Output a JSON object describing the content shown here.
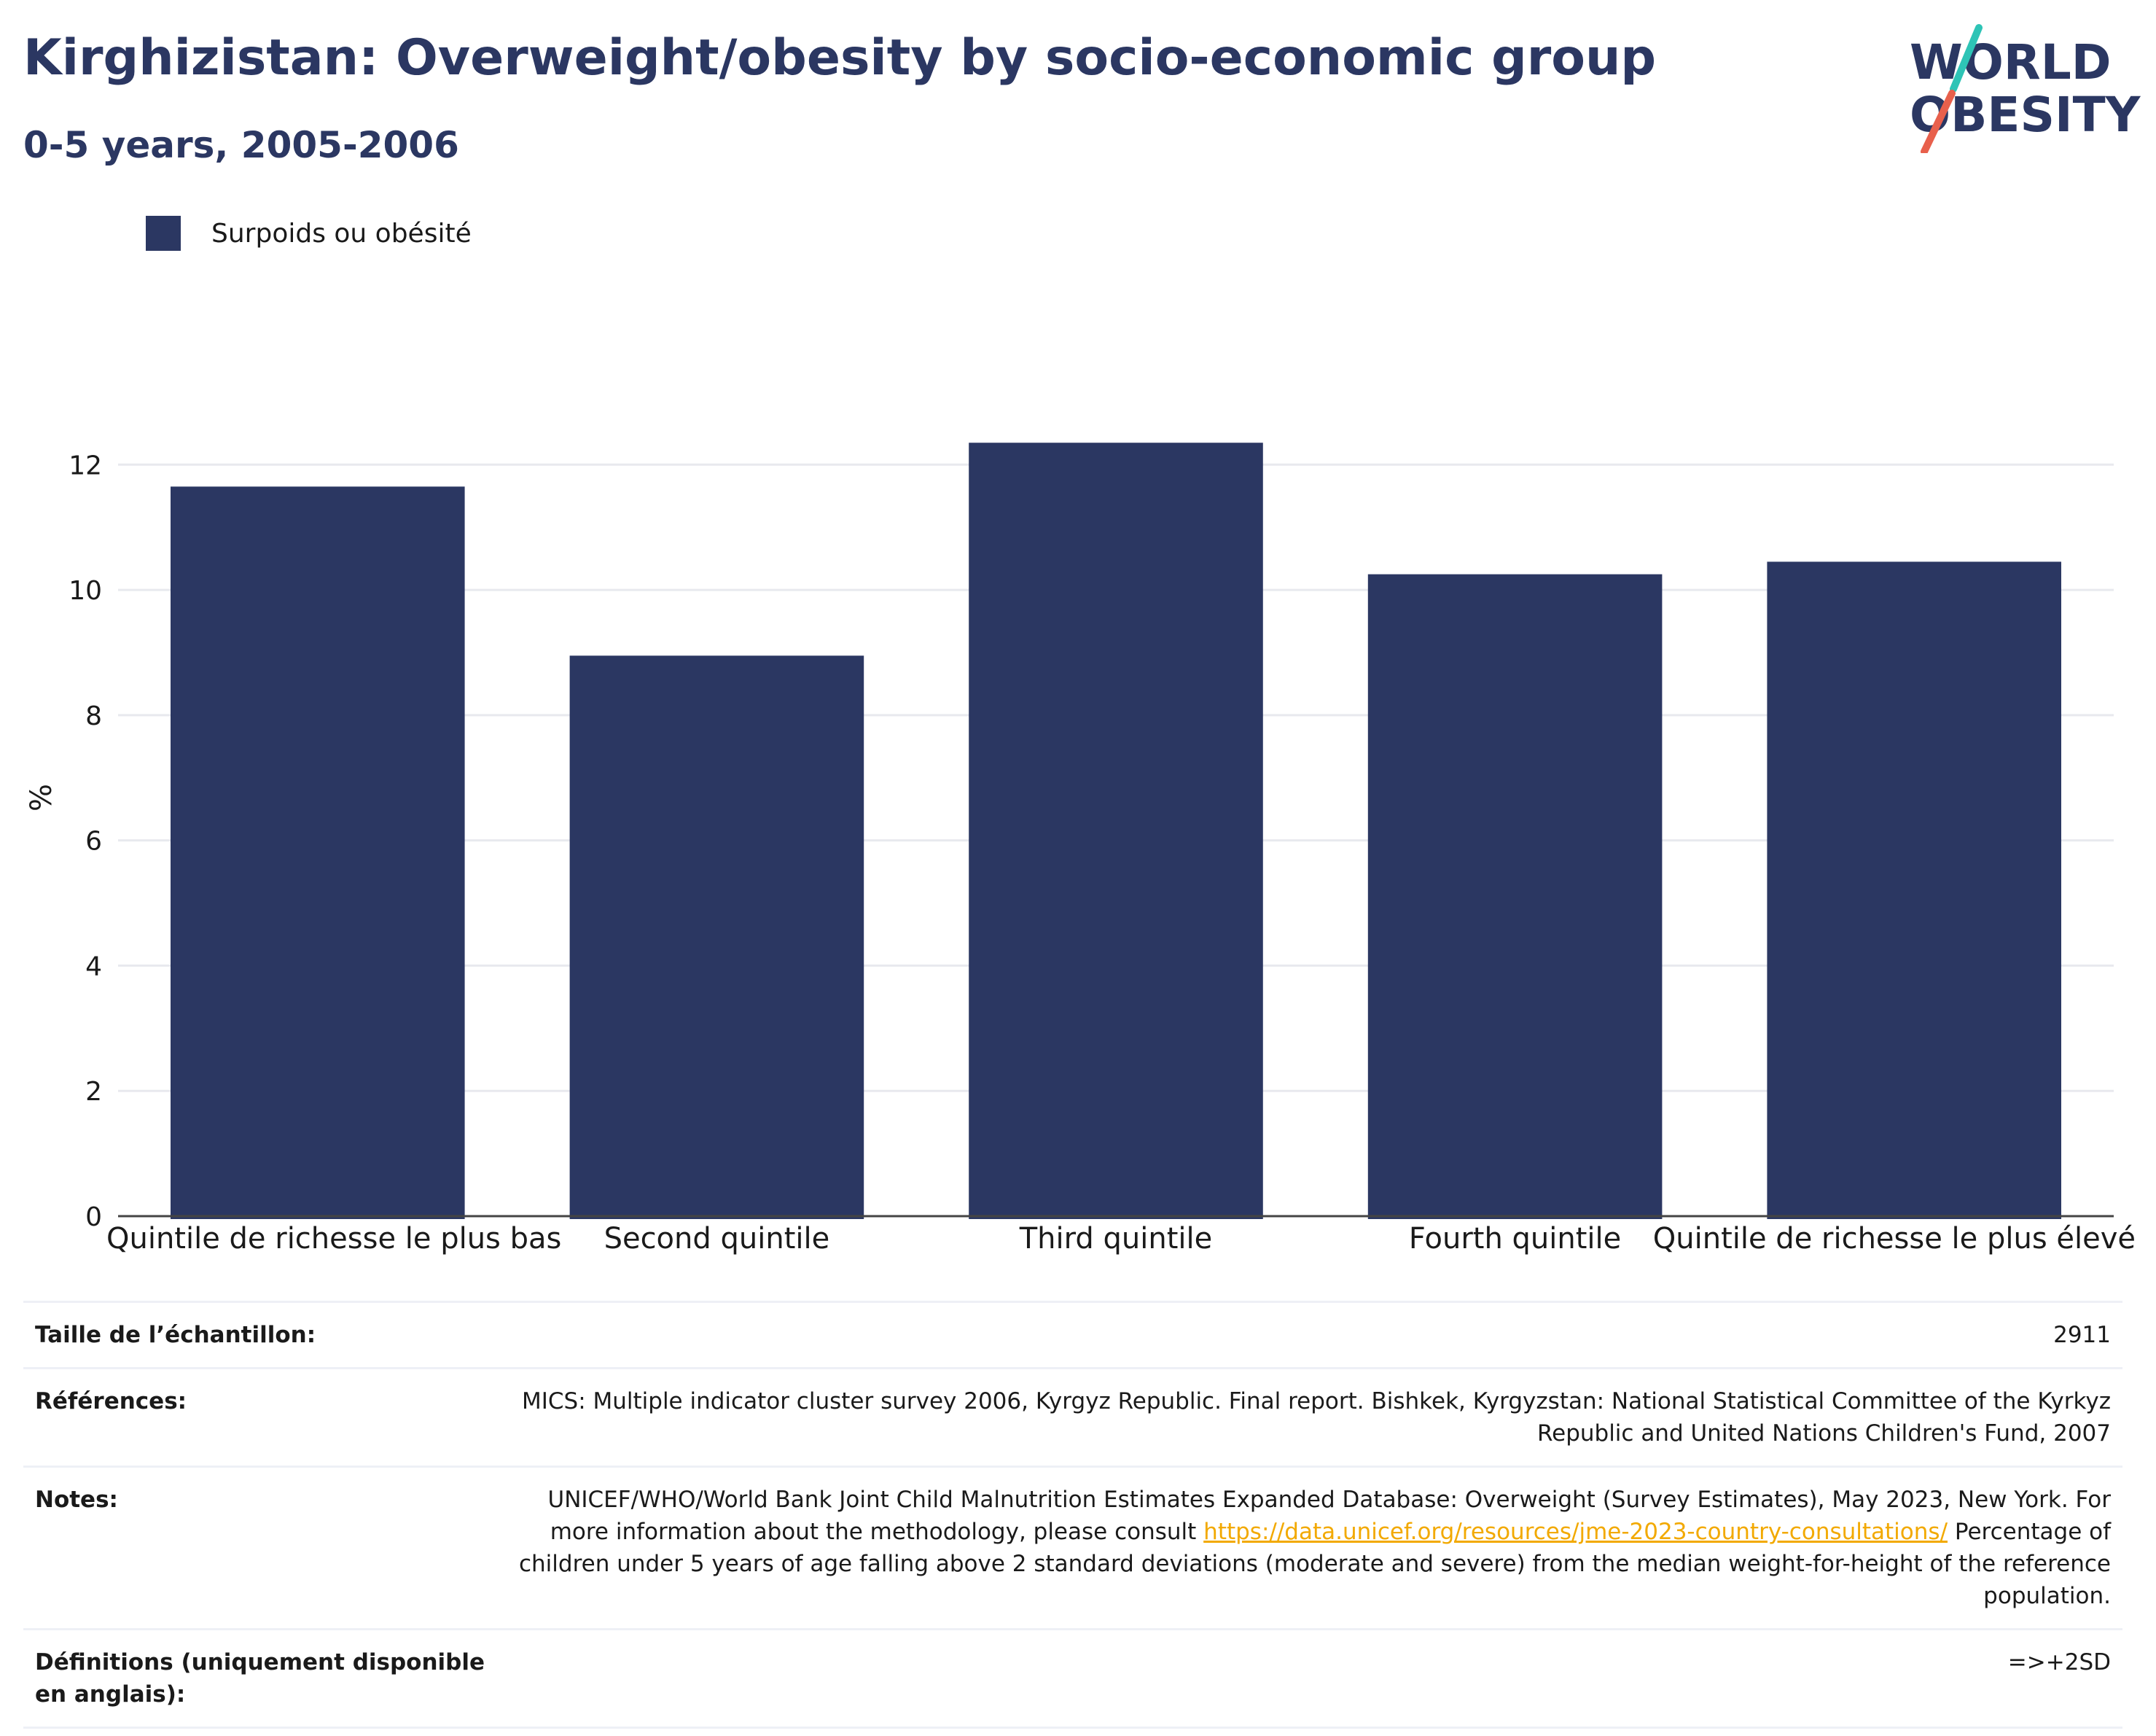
{
  "header": {
    "title": "Kirghizistan: Overweight/obesity by socio-economic group",
    "subtitle": "0-5 years, 2005-2006"
  },
  "logo": {
    "line1": "WORLD",
    "line2": "OBESITY",
    "slash_colors": [
      "#2ec4b6",
      "#e8604c"
    ],
    "text_color": "#2b3762"
  },
  "legend": {
    "label": "Surpoids ou obésité",
    "color": "#2b3762"
  },
  "chart_data": {
    "type": "bar",
    "categories": [
      "Quintile de richesse le plus bas",
      "Second quintile",
      "Third quintile",
      "Fourth quintile",
      "Quintile de richesse le plus élevé"
    ],
    "series": [
      {
        "name": "Surpoids ou obésité",
        "values": [
          11.65,
          8.95,
          12.35,
          10.25,
          10.45
        ],
        "color": "#2b3762"
      }
    ],
    "ylabel": "%",
    "ylim": [
      0,
      12.9
    ],
    "yticks": [
      0,
      2,
      4,
      6,
      8,
      10,
      12
    ],
    "grid": true,
    "legend_position": "top-left"
  },
  "info": {
    "sample_size": {
      "label": "Taille de l’échantillon:",
      "value": "2911"
    },
    "references": {
      "label": "Références:",
      "value": "MICS: Multiple indicator cluster survey 2006, Kyrgyz Republic. Final report. Bishkek, Kyrgyzstan: National Statistical Committee of the Kyrkyz Republic and United Nations Children's Fund, 2007"
    },
    "notes": {
      "label": "Notes:",
      "text_before": "UNICEF/WHO/World Bank Joint Child Malnutrition Estimates Expanded Database: Overweight (Survey Estimates), May 2023, New York. For more information about the methodology, please consult ",
      "link": "https://data.unicef.org/resources/jme-2023-country-consultations/",
      "text_after": " Percentage of children under 5 years of age falling above 2 standard deviations (moderate and severe) from the median weight-for-height of the reference population."
    },
    "definitions": {
      "label": "Définitions (uniquement disponible en anglais):",
      "value": "=>+2SD"
    }
  }
}
